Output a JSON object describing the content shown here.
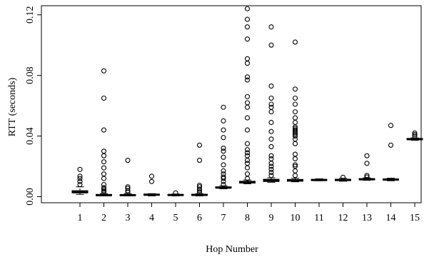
{
  "chart_data": {
    "type": "boxplot",
    "xlabel": "Hop Number",
    "ylabel": "RTT (seconds)",
    "ylim": [
      -0.004,
      0.126
    ],
    "yticks": [
      0.0,
      0.04,
      0.08,
      0.12
    ],
    "ytick_labels": [
      "0.00",
      "0.04",
      "0.08",
      "0.12"
    ],
    "grid": false,
    "categories": [
      "1",
      "2",
      "3",
      "4",
      "5",
      "6",
      "7",
      "8",
      "9",
      "10",
      "11",
      "12",
      "13",
      "14",
      "15"
    ],
    "boxes": [
      {
        "category": "1",
        "whisker_low": 0.0015,
        "q1": 0.0025,
        "median": 0.003,
        "q3": 0.004,
        "whisker_high": 0.0065,
        "outliers": [
          0.008,
          0.01,
          0.012,
          0.0135,
          0.018
        ]
      },
      {
        "category": "2",
        "whisker_low": 0.0005,
        "q1": 0.0008,
        "median": 0.001,
        "q3": 0.0015,
        "whisker_high": 0.002,
        "outliers": [
          0.003,
          0.004,
          0.005,
          0.006,
          0.008,
          0.012,
          0.015,
          0.019,
          0.023,
          0.027,
          0.03,
          0.044,
          0.065,
          0.083
        ]
      },
      {
        "category": "3",
        "whisker_low": 0.0005,
        "q1": 0.0008,
        "median": 0.001,
        "q3": 0.0013,
        "whisker_high": 0.002,
        "outliers": [
          0.003,
          0.004,
          0.0055,
          0.0065,
          0.024
        ]
      },
      {
        "category": "4",
        "whisker_low": 0.0005,
        "q1": 0.001,
        "median": 0.0013,
        "q3": 0.0017,
        "whisker_high": 0.002,
        "outliers": [
          0.01,
          0.0135
        ]
      },
      {
        "category": "5",
        "whisker_low": 0.0005,
        "q1": 0.0009,
        "median": 0.0011,
        "q3": 0.0014,
        "whisker_high": 0.0018,
        "outliers": [
          0.0025
        ]
      },
      {
        "category": "6",
        "whisker_low": 0.0005,
        "q1": 0.0009,
        "median": 0.0012,
        "q3": 0.0016,
        "whisker_high": 0.002,
        "outliers": [
          0.003,
          0.004,
          0.005,
          0.0065,
          0.0075,
          0.024,
          0.034
        ]
      },
      {
        "category": "7",
        "whisker_low": 0.0052,
        "q1": 0.0057,
        "median": 0.006,
        "q3": 0.0065,
        "whisker_high": 0.0072,
        "outliers": [
          0.008,
          0.01,
          0.012,
          0.013,
          0.015,
          0.017,
          0.021,
          0.026,
          0.03,
          0.032,
          0.039,
          0.044,
          0.05,
          0.059
        ]
      },
      {
        "category": "8",
        "whisker_low": 0.0085,
        "q1": 0.009,
        "median": 0.0095,
        "q3": 0.0102,
        "whisker_high": 0.011,
        "outliers": [
          0.012,
          0.015,
          0.019,
          0.022,
          0.024,
          0.027,
          0.029,
          0.031,
          0.035,
          0.044,
          0.052,
          0.059,
          0.062,
          0.066,
          0.077,
          0.079,
          0.088,
          0.091,
          0.104,
          0.112,
          0.117,
          0.124
        ]
      },
      {
        "category": "9",
        "whisker_low": 0.0095,
        "q1": 0.01,
        "median": 0.0108,
        "q3": 0.0115,
        "whisker_high": 0.0125,
        "outliers": [
          0.014,
          0.016,
          0.018,
          0.02,
          0.022,
          0.025,
          0.027,
          0.033,
          0.038,
          0.043,
          0.049,
          0.056,
          0.059,
          0.061,
          0.065,
          0.073,
          0.1,
          0.112
        ]
      },
      {
        "category": "10",
        "whisker_low": 0.0098,
        "q1": 0.0102,
        "median": 0.0108,
        "q3": 0.0114,
        "whisker_high": 0.0122,
        "outliers": [
          0.014,
          0.017,
          0.02,
          0.021,
          0.025,
          0.028,
          0.035,
          0.038,
          0.04,
          0.041,
          0.042,
          0.043,
          0.044,
          0.045,
          0.046,
          0.049,
          0.052,
          0.056,
          0.061,
          0.065,
          0.071,
          0.102
        ]
      },
      {
        "category": "11",
        "whisker_low": 0.0105,
        "q1": 0.0108,
        "median": 0.011,
        "q3": 0.0114,
        "whisker_high": 0.0118,
        "outliers": []
      },
      {
        "category": "12",
        "whisker_low": 0.0102,
        "q1": 0.0106,
        "median": 0.011,
        "q3": 0.0115,
        "whisker_high": 0.0122,
        "outliers": [
          0.0128
        ]
      },
      {
        "category": "13",
        "whisker_low": 0.0108,
        "q1": 0.0112,
        "median": 0.0115,
        "q3": 0.0119,
        "whisker_high": 0.0124,
        "outliers": [
          0.013,
          0.014,
          0.022,
          0.027
        ]
      },
      {
        "category": "14",
        "whisker_low": 0.0105,
        "q1": 0.011,
        "median": 0.0113,
        "q3": 0.0117,
        "whisker_high": 0.0122,
        "outliers": [
          0.034,
          0.047
        ]
      },
      {
        "category": "15",
        "whisker_low": 0.0372,
        "q1": 0.0376,
        "median": 0.038,
        "q3": 0.0384,
        "whisker_high": 0.0388,
        "outliers": [
          0.04,
          0.041,
          0.042
        ]
      }
    ]
  }
}
